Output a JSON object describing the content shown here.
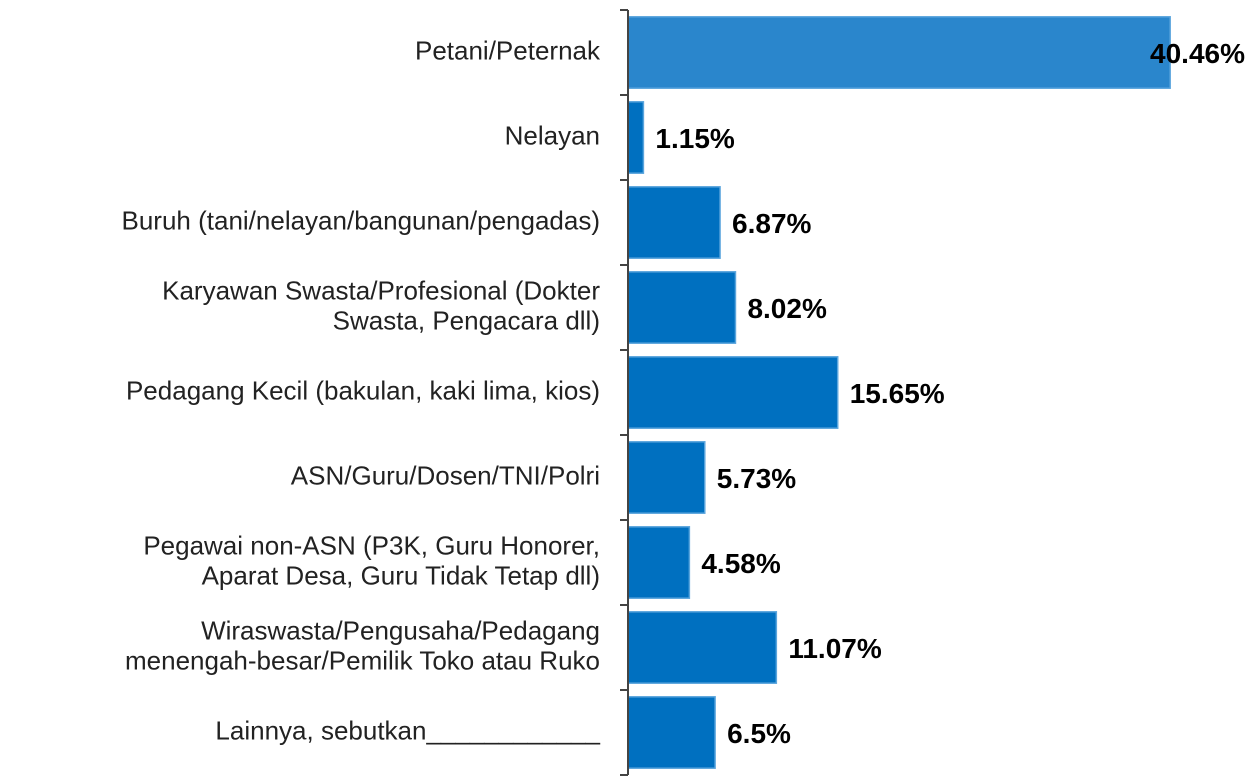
{
  "chart_data": {
    "type": "hbar",
    "categories": [
      "Petani/Peternak",
      "Nelayan",
      "Buruh (tani/nelayan/bangunan/pengadas)",
      "Karyawan Swasta/Profesional (Dokter\nSwasta, Pengacara dll)",
      "Pedagang Kecil (bakulan, kaki lima, kios)",
      "ASN/Guru/Dosen/TNI/Polri",
      "Pegawai non-ASN (P3K, Guru Honorer,\nAparat Desa, Guru Tidak Tetap dll)",
      "Wiraswasta/Pengusaha/Pedagang\nmenengah-besar/Pemilik Toko atau Ruko",
      "Lainnya, sebutkan____________"
    ],
    "values": [
      40.46,
      1.15,
      6.87,
      8.02,
      15.65,
      5.73,
      4.58,
      11.07,
      6.5
    ],
    "value_labels": [
      "40.46%",
      "1.15%",
      "6.87%",
      "8.02%",
      "15.65%",
      "5.73%",
      "4.58%",
      "11.07%",
      "6.5%"
    ],
    "colors": [
      "#2a86cc",
      "#0070c0",
      "#0070c0",
      "#0070c0",
      "#0070c0",
      "#0070c0",
      "#0070c0",
      "#0070c0",
      "#0070c0"
    ],
    "xlim": [
      0,
      45
    ]
  }
}
